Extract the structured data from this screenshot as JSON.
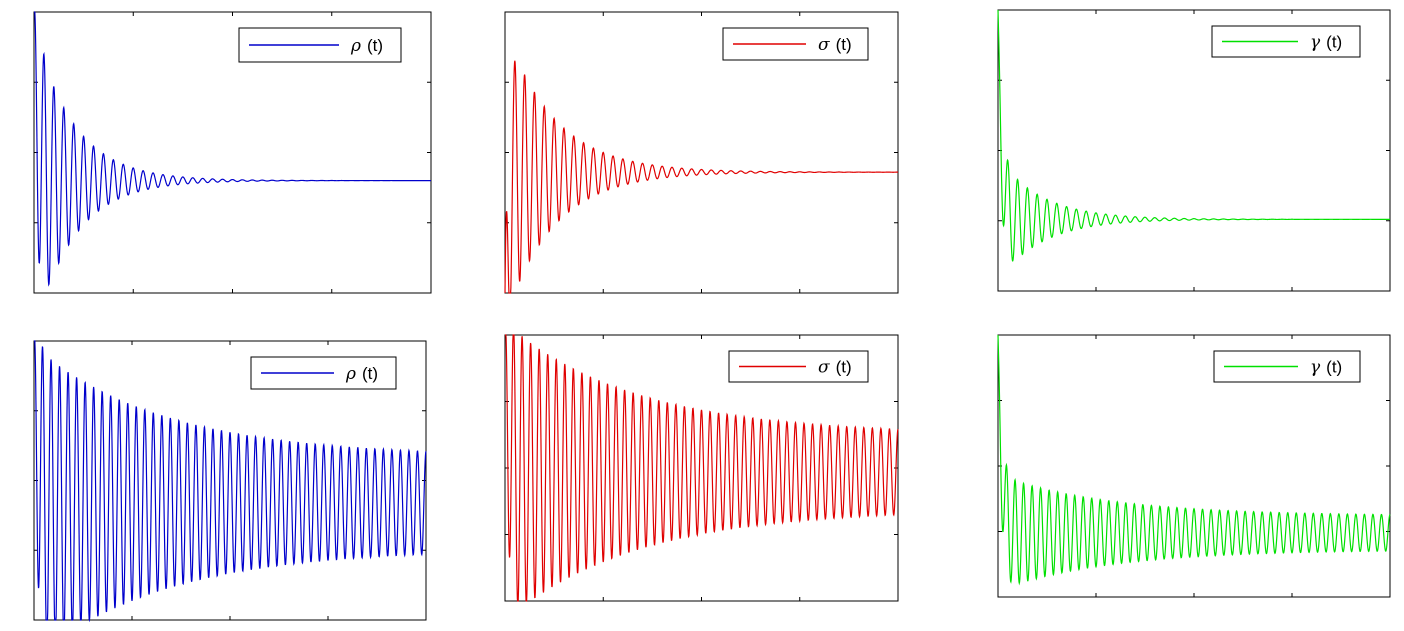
{
  "chart_data": [
    {
      "type": "line",
      "series": [
        {
          "name": "ρ (t)",
          "symbol": "ρ",
          "suffix": "(t)",
          "color": "#0000cc",
          "start": 1.0,
          "equilibrium": 0.4,
          "amp0": 0.55,
          "amp_floor": 0.0,
          "decay": 10.0,
          "cycles": 40
        }
      ],
      "xlim": [
        0,
        1
      ],
      "ylim": [
        0,
        1
      ],
      "xticks": 4,
      "yticks": 4,
      "legend": "top-right",
      "grid": false
    },
    {
      "type": "line",
      "series": [
        {
          "name": "σ (t)",
          "symbol": "σ",
          "suffix": "(t)",
          "color": "#e00000",
          "start": 0.0,
          "equilibrium": 0.43,
          "amp0": 0.52,
          "amp_floor": 0.0,
          "decay": 8.0,
          "cycles": 40
        }
      ],
      "xlim": [
        0,
        1
      ],
      "ylim": [
        0,
        1
      ],
      "xticks": 4,
      "yticks": 4,
      "legend": "top-right",
      "grid": false
    },
    {
      "type": "line",
      "series": [
        {
          "name": "γ (t)",
          "symbol": "γ",
          "suffix": "(t)",
          "color": "#00e000",
          "start": 1.0,
          "equilibrium": 0.255,
          "amp0": 0.22,
          "amp_floor": 0.0,
          "decay": 9.0,
          "cycles": 40
        }
      ],
      "xlim": [
        0,
        1
      ],
      "ylim": [
        0,
        1
      ],
      "xticks": 4,
      "yticks": 4,
      "legend": "top-right",
      "grid": false
    },
    {
      "type": "line",
      "series": [
        {
          "name": "ρ (t)",
          "symbol": "ρ",
          "suffix": "(t)",
          "color": "#0000cc",
          "start": 1.0,
          "equilibrium": 0.42,
          "amp0": 0.56,
          "amp_floor": 0.165,
          "decay": 3.0,
          "cycles": 46
        }
      ],
      "xlim": [
        0,
        1
      ],
      "ylim": [
        0,
        1
      ],
      "xticks": 4,
      "yticks": 4,
      "legend": "top-right",
      "grid": false
    },
    {
      "type": "line",
      "series": [
        {
          "name": "σ (t)",
          "symbol": "σ",
          "suffix": "(t)",
          "color": "#e00000",
          "start": 1.0,
          "equilibrium": 0.485,
          "amp0": 0.56,
          "amp_floor": 0.14,
          "decay": 3.0,
          "cycles": 46
        }
      ],
      "xlim": [
        0,
        1
      ],
      "ylim": [
        0,
        1
      ],
      "xticks": 4,
      "yticks": 4,
      "legend": "top-right",
      "grid": false
    },
    {
      "type": "line",
      "series": [
        {
          "name": "γ (t)",
          "symbol": "γ",
          "suffix": "(t)",
          "color": "#00e000",
          "start": 1.0,
          "equilibrium": 0.245,
          "amp0": 0.22,
          "amp_floor": 0.065,
          "decay": 3.5,
          "cycles": 46
        }
      ],
      "xlim": [
        0,
        1
      ],
      "ylim": [
        0,
        1
      ],
      "xticks": 4,
      "yticks": 4,
      "legend": "top-right",
      "grid": false
    }
  ]
}
